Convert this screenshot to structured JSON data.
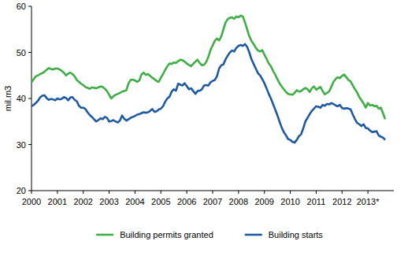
{
  "chart_data": {
    "type": "line",
    "ylabel": "mil.m3",
    "ylim": [
      20,
      60
    ],
    "yticks": [
      20,
      30,
      40,
      50,
      60
    ],
    "grid": false,
    "legend": "bottom",
    "categories": [
      "2000",
      null,
      null,
      null,
      null,
      null,
      null,
      null,
      null,
      null,
      null,
      null,
      "2001",
      null,
      null,
      null,
      null,
      null,
      null,
      null,
      null,
      null,
      null,
      null,
      "2002",
      null,
      null,
      null,
      null,
      null,
      null,
      null,
      null,
      null,
      null,
      null,
      "2003",
      null,
      null,
      null,
      null,
      null,
      null,
      null,
      null,
      null,
      null,
      null,
      "2004",
      null,
      null,
      null,
      null,
      null,
      null,
      null,
      null,
      null,
      null,
      null,
      "2005",
      null,
      null,
      null,
      null,
      null,
      null,
      null,
      null,
      null,
      null,
      null,
      "2006",
      null,
      null,
      null,
      null,
      null,
      null,
      null,
      null,
      null,
      null,
      null,
      "2007",
      null,
      null,
      null,
      null,
      null,
      null,
      null,
      null,
      null,
      null,
      null,
      "2008",
      null,
      null,
      null,
      null,
      null,
      null,
      null,
      null,
      null,
      null,
      null,
      "2009",
      null,
      null,
      null,
      null,
      null,
      null,
      null,
      null,
      null,
      null,
      null,
      "2010",
      null,
      null,
      null,
      null,
      null,
      null,
      null,
      null,
      null,
      null,
      null,
      "2011",
      null,
      null,
      null,
      null,
      null,
      null,
      null,
      null,
      null,
      null,
      null,
      "2012",
      null,
      null,
      null,
      null,
      null,
      null,
      null,
      null,
      null,
      null,
      null,
      "2013*",
      null,
      null,
      null,
      null,
      null,
      null,
      null,
      null
    ],
    "series": [
      {
        "name": "Building permits granted",
        "color": "#3cb044",
        "values": [
          43.5,
          44.2,
          44.8,
          45.0,
          45.3,
          45.5,
          45.8,
          46.2,
          46.6,
          46.4,
          46.3,
          46.5,
          46.5,
          46.3,
          46.0,
          45.6,
          45.0,
          45.4,
          45.6,
          45.3,
          44.8,
          44.0,
          43.6,
          43.2,
          42.9,
          42.5,
          42.3,
          42.1,
          42.4,
          42.3,
          42.2,
          42.4,
          42.6,
          42.5,
          42.1,
          41.6,
          40.8,
          40.0,
          40.5,
          40.8,
          41.0,
          41.2,
          41.5,
          41.6,
          41.8,
          43.3,
          44.0,
          44.1,
          43.9,
          43.6,
          43.9,
          45.2,
          45.6,
          45.1,
          45.3,
          44.9,
          44.5,
          44.2,
          43.8,
          43.6,
          44.5,
          45.3,
          46.2,
          47.0,
          47.6,
          47.5,
          47.8,
          47.7,
          48.1,
          48.4,
          48.3,
          48.0,
          47.6,
          47.3,
          47.0,
          47.5,
          48.0,
          48.4,
          47.7,
          47.2,
          47.3,
          47.9,
          49.0,
          50.5,
          51.5,
          52.5,
          53.0,
          52.6,
          53.5,
          55.0,
          56.5,
          57.2,
          57.5,
          57.6,
          57.3,
          57.8,
          57.6,
          58.0,
          57.8,
          56.5,
          55.0,
          53.5,
          52.5,
          51.8,
          51.0,
          50.4,
          50.2,
          50.5,
          49.5,
          48.6,
          47.6,
          47.0,
          46.0,
          45.2,
          44.2,
          43.3,
          42.6,
          42.0,
          41.4,
          41.0,
          40.9,
          40.8,
          41.2,
          41.8,
          41.5,
          41.6,
          42.0,
          42.3,
          42.0,
          41.4,
          42.2,
          42.6,
          41.9,
          42.2,
          42.5,
          41.6,
          40.9,
          41.2,
          41.5,
          42.5,
          43.6,
          44.2,
          44.6,
          44.4,
          44.9,
          45.2,
          44.6,
          44.0,
          43.7,
          42.8,
          42.0,
          41.3,
          40.3,
          39.6,
          38.9,
          38.0,
          39.0,
          38.5,
          38.6,
          38.3,
          38.4,
          37.8,
          38.0,
          36.8,
          35.5
        ]
      },
      {
        "name": "Building starts",
        "color": "#1d5aa6",
        "values": [
          38.3,
          38.6,
          39.0,
          39.5,
          40.2,
          40.6,
          40.7,
          40.1,
          39.7,
          39.9,
          39.8,
          39.6,
          40.0,
          39.8,
          39.9,
          40.3,
          40.1,
          39.6,
          40.2,
          40.3,
          39.7,
          39.4,
          38.4,
          38.0,
          38.0,
          37.7,
          37.0,
          36.4,
          36.0,
          35.5,
          35.0,
          35.3,
          35.7,
          35.5,
          36.0,
          35.8,
          35.0,
          35.1,
          35.3,
          35.0,
          34.8,
          35.2,
          36.3,
          35.6,
          35.2,
          35.5,
          35.8,
          36.0,
          36.2,
          36.5,
          36.6,
          36.8,
          37.0,
          36.9,
          37.0,
          37.3,
          37.7,
          37.1,
          37.2,
          37.6,
          37.8,
          38.3,
          39.3,
          40.0,
          40.4,
          41.5,
          42.0,
          41.7,
          43.2,
          43.0,
          42.8,
          43.3,
          42.7,
          42.0,
          42.2,
          41.6,
          41.0,
          41.6,
          41.7,
          42.0,
          42.8,
          42.9,
          42.8,
          43.5,
          43.8,
          44.0,
          44.8,
          46.5,
          47.2,
          47.4,
          48.5,
          49.3,
          50.0,
          50.4,
          50.2,
          51.0,
          51.4,
          51.6,
          51.4,
          51.8,
          51.2,
          50.0,
          48.5,
          47.5,
          46.5,
          45.5,
          45.0,
          44.2,
          43.3,
          42.2,
          41.0,
          40.0,
          38.8,
          37.6,
          36.4,
          35.0,
          33.7,
          32.7,
          32.0,
          31.2,
          31.0,
          30.6,
          30.4,
          31.0,
          31.8,
          32.2,
          33.5,
          35.0,
          35.8,
          36.6,
          37.3,
          37.8,
          38.3,
          38.2,
          38.0,
          38.6,
          38.4,
          38.8,
          38.7,
          39.0,
          38.8,
          38.5,
          38.3,
          38.6,
          37.9,
          37.8,
          37.9,
          37.8,
          37.6,
          36.5,
          35.5,
          34.7,
          34.4,
          34.0,
          34.4,
          33.6,
          33.5,
          33.0,
          32.7,
          32.8,
          32.9,
          32.0,
          31.7,
          31.5,
          31.0
        ]
      }
    ]
  }
}
